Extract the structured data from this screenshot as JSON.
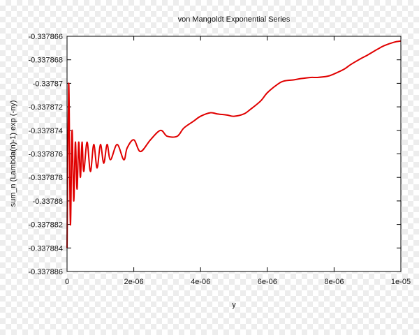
{
  "chart_data": {
    "type": "line",
    "title": "von Mangoldt Exponential Series",
    "xlabel": "y",
    "ylabel": "sum_n (Lambda(n)-1) exp (-ny)",
    "xlim": [
      0,
      1e-05
    ],
    "ylim": [
      -0.337886,
      -0.337866
    ],
    "x_ticks": [
      "0",
      "2e-06",
      "4e-06",
      "6e-06",
      "8e-06",
      "1e-05"
    ],
    "x_tick_values": [
      0,
      2e-06,
      4e-06,
      6e-06,
      8e-06,
      1e-05
    ],
    "y_ticks": [
      "-0.337866",
      "-0.337868",
      "-0.33787",
      "-0.337872",
      "-0.337874",
      "-0.337876",
      "-0.337878",
      "-0.33788",
      "-0.337882",
      "-0.337884",
      "-0.337886"
    ],
    "y_tick_values": [
      -0.337866,
      -0.337868,
      -0.33787,
      -0.337872,
      -0.337874,
      -0.337876,
      -0.337878,
      -0.33788,
      -0.337882,
      -0.337884,
      -0.337886
    ],
    "grid": false,
    "series": [
      {
        "color": "#e00000",
        "x": [
          0,
          5e-08,
          1e-07,
          1.5e-07,
          2e-07,
          2.5e-07,
          3e-07,
          3.5e-07,
          4e-07,
          4.5e-07,
          5e-07,
          6e-07,
          7e-07,
          8e-07,
          9e-07,
          1e-06,
          1.1e-06,
          1.2e-06,
          1.3e-06,
          1.5e-06,
          1.7e-06,
          1.8e-06,
          2e-06,
          2.2e-06,
          2.5e-06,
          2.8e-06,
          3e-06,
          3.3e-06,
          3.5e-06,
          3.8e-06,
          4e-06,
          4.3e-06,
          4.5e-06,
          4.8e-06,
          5e-06,
          5.3e-06,
          5.5e-06,
          5.8e-06,
          6e-06,
          6.3e-06,
          6.5e-06,
          6.8e-06,
          7e-06,
          7.3e-06,
          7.5e-06,
          7.8e-06,
          8e-06,
          8.3e-06,
          8.5e-06,
          8.8e-06,
          9e-06,
          9.3e-06,
          9.5e-06,
          9.8e-06,
          1e-05
        ],
        "y": [
          -0.337884,
          -0.33787,
          -0.337882,
          -0.337874,
          -0.33788,
          -0.337875,
          -0.337879,
          -0.337875,
          -0.337878,
          -0.337875,
          -0.3378775,
          -0.337875,
          -0.3378775,
          -0.3378752,
          -0.3378772,
          -0.3378752,
          -0.3378768,
          -0.3378752,
          -0.3378765,
          -0.3378752,
          -0.3378765,
          -0.3378755,
          -0.3378748,
          -0.3378758,
          -0.3378748,
          -0.337874,
          -0.3378745,
          -0.3378745,
          -0.3378738,
          -0.3378732,
          -0.3378728,
          -0.3378725,
          -0.3378726,
          -0.3378727,
          -0.3378728,
          -0.3378726,
          -0.3378722,
          -0.3378715,
          -0.3378708,
          -0.3378701,
          -0.3378698,
          -0.3378697,
          -0.3378696,
          -0.3378695,
          -0.3378695,
          -0.3378694,
          -0.3378692,
          -0.3378688,
          -0.3378684,
          -0.3378679,
          -0.3378676,
          -0.3378671,
          -0.3378668,
          -0.3378665,
          -0.3378664
        ]
      }
    ]
  }
}
